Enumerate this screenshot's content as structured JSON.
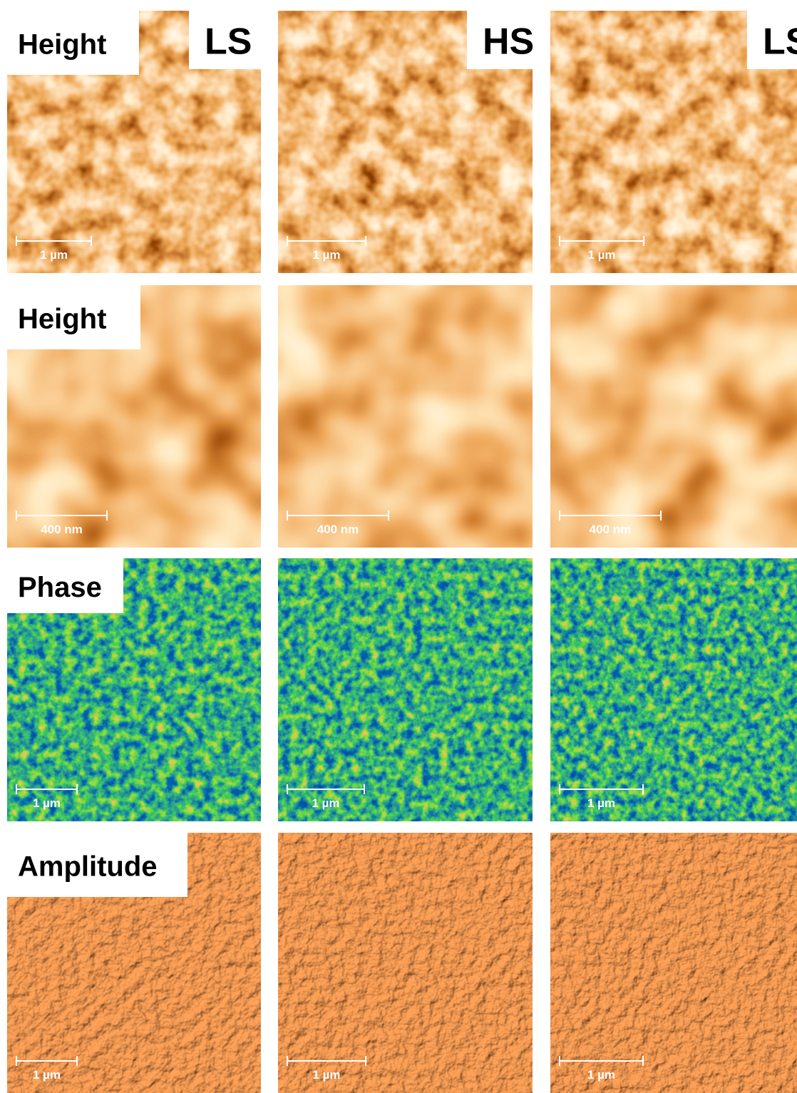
{
  "columns": [
    "LS",
    "HS",
    "LS"
  ],
  "rows": [
    {
      "label": "Height",
      "scale_bars": [
        "1 µm",
        "1 µm",
        "1 µm"
      ]
    },
    {
      "label": "Height",
      "scale_bars": [
        "400 nm",
        "400 nm",
        "400 nm"
      ]
    },
    {
      "label": "Phase",
      "scale_bars": [
        "1 µm",
        "1 µm",
        "1 µm"
      ]
    },
    {
      "label": "Amplitude",
      "scale_bars": [
        "1 µm",
        "1 µm",
        "1 µm"
      ]
    }
  ]
}
